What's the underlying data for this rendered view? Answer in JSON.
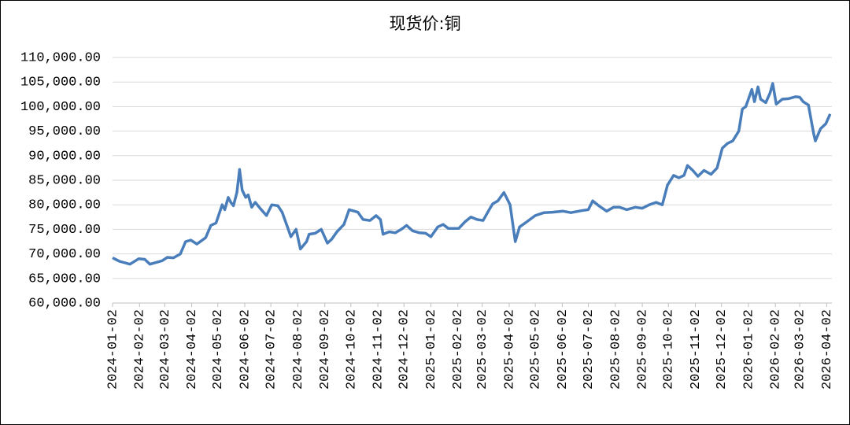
{
  "chart_data": {
    "type": "line",
    "title": "现货价:铜",
    "x": [
      "2024-01-02",
      "2024-01-10",
      "2024-01-22",
      "2024-02-01",
      "2024-02-08",
      "2024-02-14",
      "2024-02-28",
      "2024-03-05",
      "2024-03-12",
      "2024-03-20",
      "2024-03-26",
      "2024-04-01",
      "2024-04-08",
      "2024-04-18",
      "2024-04-24",
      "2024-04-30",
      "2024-05-07",
      "2024-05-10",
      "2024-05-14",
      "2024-05-17",
      "2024-05-20",
      "2024-05-24",
      "2024-05-27",
      "2024-05-30",
      "2024-06-03",
      "2024-06-06",
      "2024-06-10",
      "2024-06-14",
      "2024-06-20",
      "2024-06-27",
      "2024-07-03",
      "2024-07-10",
      "2024-07-15",
      "2024-07-22",
      "2024-07-25",
      "2024-07-31",
      "2024-08-05",
      "2024-08-12",
      "2024-08-15",
      "2024-08-22",
      "2024-08-29",
      "2024-09-05",
      "2024-09-10",
      "2024-09-16",
      "2024-09-24",
      "2024-09-30",
      "2024-10-10",
      "2024-10-16",
      "2024-10-24",
      "2024-10-31",
      "2024-11-05",
      "2024-11-08",
      "2024-11-15",
      "2024-11-22",
      "2024-11-29",
      "2024-12-05",
      "2024-12-12",
      "2024-12-20",
      "2024-12-27",
      "2025-01-02",
      "2025-01-10",
      "2025-01-16",
      "2025-01-22",
      "2025-02-03",
      "2025-02-10",
      "2025-02-17",
      "2025-02-24",
      "2025-03-03",
      "2025-03-10",
      "2025-03-14",
      "2025-03-20",
      "2025-03-27",
      "2025-04-03",
      "2025-04-09",
      "2025-04-14",
      "2025-04-22",
      "2025-05-02",
      "2025-05-12",
      "2025-05-22",
      "2025-06-03",
      "2025-06-12",
      "2025-06-24",
      "2025-07-02",
      "2025-07-07",
      "2025-07-14",
      "2025-07-23",
      "2025-07-31",
      "2025-08-07",
      "2025-08-15",
      "2025-08-25",
      "2025-09-02",
      "2025-09-10",
      "2025-09-18",
      "2025-09-25",
      "2025-10-01",
      "2025-10-08",
      "2025-10-14",
      "2025-10-20",
      "2025-10-24",
      "2025-10-30",
      "2025-11-05",
      "2025-11-12",
      "2025-11-20",
      "2025-11-27",
      "2025-12-03",
      "2025-12-09",
      "2025-12-15",
      "2025-12-22",
      "2025-12-26",
      "2025-12-30",
      "2026-01-06",
      "2026-01-09",
      "2026-01-13",
      "2026-01-16",
      "2026-01-22",
      "2026-01-27",
      "2026-01-30",
      "2026-02-03",
      "2026-02-10",
      "2026-02-17",
      "2026-02-25",
      "2026-03-02",
      "2026-03-06",
      "2026-03-12",
      "2026-03-18",
      "2026-03-20",
      "2026-03-26",
      "2026-04-01",
      "2026-04-06"
    ],
    "series": [
      {
        "name": "现货价:铜",
        "color": "#4a7ebb",
        "values": [
          69200,
          68500,
          67900,
          69000,
          68900,
          67900,
          68600,
          69300,
          69200,
          70000,
          72500,
          72800,
          72000,
          73300,
          75800,
          76300,
          80000,
          79000,
          81500,
          80500,
          79800,
          82500,
          87200,
          83000,
          81500,
          82000,
          79500,
          80500,
          79200,
          77800,
          80000,
          79800,
          78500,
          75000,
          73500,
          75000,
          71000,
          72500,
          74000,
          74200,
          75000,
          72200,
          73000,
          74500,
          76000,
          79000,
          78500,
          77000,
          76800,
          77800,
          77000,
          74000,
          74500,
          74300,
          75000,
          75800,
          74700,
          74300,
          74200,
          73500,
          75500,
          76000,
          75200,
          75200,
          76500,
          77500,
          77000,
          76800,
          79000,
          80200,
          80800,
          82500,
          80000,
          72500,
          75500,
          76500,
          77800,
          78400,
          78500,
          78700,
          78400,
          78800,
          79000,
          80800,
          79800,
          78700,
          79500,
          79500,
          79000,
          79500,
          79300,
          80000,
          80500,
          80000,
          84000,
          86000,
          85500,
          86000,
          88000,
          87000,
          85800,
          87000,
          86200,
          87500,
          91500,
          92500,
          93000,
          95000,
          99500,
          100000,
          103500,
          101000,
          104000,
          101500,
          100800,
          102800,
          104700,
          100500,
          101500,
          101600,
          102000,
          101900,
          101000,
          100300,
          94500,
          93000,
          95500,
          96500,
          98500
        ]
      }
    ],
    "xlim": [
      "2024-01-02",
      "2026-04-08"
    ],
    "xticks": [
      "2024-01-02",
      "2024-02-02",
      "2024-03-02",
      "2024-04-02",
      "2024-05-02",
      "2024-06-02",
      "2024-07-02",
      "2024-08-02",
      "2024-09-02",
      "2024-10-02",
      "2024-11-02",
      "2024-12-02",
      "2025-01-02",
      "2025-02-02",
      "2025-03-02",
      "2025-04-02",
      "2025-05-02",
      "2025-06-02",
      "2025-07-02",
      "2025-08-02",
      "2025-09-02",
      "2025-10-02",
      "2025-11-02",
      "2025-12-02",
      "2026-01-02",
      "2026-02-02",
      "2026-03-02",
      "2026-04-02"
    ],
    "ylim": [
      60000,
      110000
    ],
    "yticks": [
      {
        "value": 60000,
        "label": "60,000.00"
      },
      {
        "value": 65000,
        "label": "65,000.00"
      },
      {
        "value": 70000,
        "label": "70,000.00"
      },
      {
        "value": 75000,
        "label": "75,000.00"
      },
      {
        "value": 80000,
        "label": "80,000.00"
      },
      {
        "value": 85000,
        "label": "85,000.00"
      },
      {
        "value": 90000,
        "label": "90,000.00"
      },
      {
        "value": 95000,
        "label": "95,000.00"
      },
      {
        "value": 100000,
        "label": "100,000.00"
      },
      {
        "value": 105000,
        "label": "105,000.00"
      },
      {
        "value": 110000,
        "label": "110,000.00"
      }
    ],
    "grid": true
  }
}
